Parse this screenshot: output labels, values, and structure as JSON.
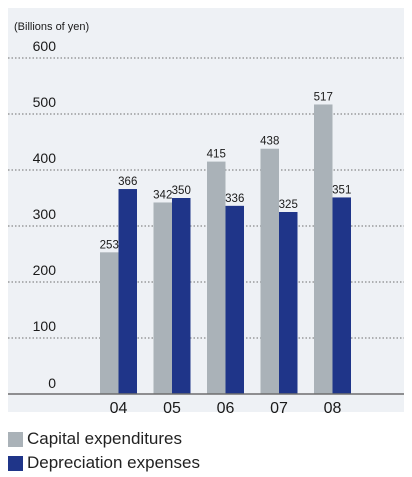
{
  "colors": {
    "panel_bg": "#eef1f5",
    "capex": "#aab2b8",
    "depreciation": "#1f3589",
    "grid": "#6e6e6e",
    "text": "#1a1a1a"
  },
  "chart_data": {
    "type": "bar",
    "unit_label": "(Billions of yen)",
    "categories": [
      "04",
      "05",
      "06",
      "07",
      "08"
    ],
    "series": [
      {
        "name": "Capital expenditures",
        "values": [
          253,
          342,
          415,
          438,
          517
        ]
      },
      {
        "name": "Depreciation expenses",
        "values": [
          366,
          350,
          336,
          325,
          351
        ]
      }
    ],
    "ylim": [
      0,
      600
    ],
    "yticks": [
      0,
      100,
      200,
      300,
      400,
      500,
      600
    ],
    "grid": true,
    "grid_style": "dotted",
    "legend_placement": "bottom-left"
  },
  "legend": {
    "items": [
      {
        "label": "Capital expenditures",
        "color": "#aab2b8"
      },
      {
        "label": "Depreciation expenses",
        "color": "#1f3589"
      }
    ]
  }
}
